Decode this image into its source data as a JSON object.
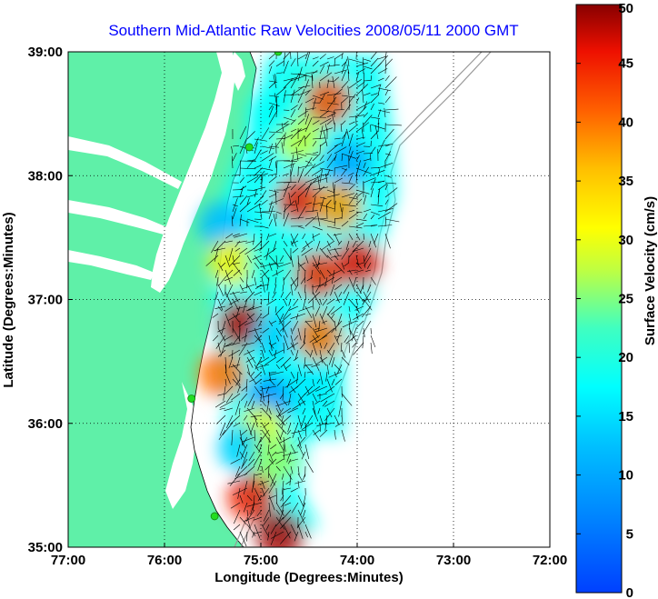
{
  "chart_data": {
    "type": "heatmap",
    "title": "Southern Mid-Atlantic Raw Velocities 2008/05/11 2000 GMT",
    "xlabel": "Longitude (Degrees:Minutes)",
    "ylabel": "Latitude (Degrees:Minutes)",
    "x_ticks": [
      "77:00",
      "76:00",
      "75:00",
      "74:00",
      "73:00",
      "72:00"
    ],
    "x_tick_values": [
      -77,
      -76,
      -75,
      -74,
      -73,
      -72
    ],
    "y_ticks": [
      "39:00",
      "38:00",
      "37:00",
      "36:00",
      "35:00"
    ],
    "y_tick_values": [
      39,
      38,
      37,
      36,
      35
    ],
    "xlim": [
      -77,
      -72
    ],
    "ylim": [
      35,
      39
    ],
    "grid": true,
    "colorbar": {
      "label": "Surface Velocity (cm/s)",
      "range": [
        0,
        50
      ],
      "ticks": [
        "50",
        "45",
        "40",
        "35",
        "30",
        "25",
        "20",
        "15",
        "10",
        "5",
        "0"
      ],
      "tick_values": [
        50,
        45,
        40,
        35,
        30,
        25,
        20,
        15,
        10,
        5,
        0
      ],
      "colormap": "jet"
    },
    "colors": {
      "land": "#5ff0a8",
      "water": "#ffffff",
      "title": "#0000ff",
      "vectors": "#000000",
      "stations": "#22dd22"
    },
    "station_markers": [
      {
        "lon": -74.82,
        "lat": 39.0
      },
      {
        "lon": -75.12,
        "lat": 38.23
      },
      {
        "lon": -75.72,
        "lat": 36.2
      },
      {
        "lon": -75.48,
        "lat": 35.25
      }
    ],
    "velocity_blobs": [
      {
        "lon": -74.5,
        "lat": 38.7,
        "speed": 20
      },
      {
        "lon": -74.3,
        "lat": 38.6,
        "speed": 42
      },
      {
        "lon": -74.6,
        "lat": 38.3,
        "speed": 28
      },
      {
        "lon": -74.9,
        "lat": 38.5,
        "speed": 18
      },
      {
        "lon": -74.1,
        "lat": 38.1,
        "speed": 10
      },
      {
        "lon": -74.6,
        "lat": 37.8,
        "speed": 45
      },
      {
        "lon": -74.2,
        "lat": 37.75,
        "speed": 38
      },
      {
        "lon": -74.0,
        "lat": 37.3,
        "speed": 46
      },
      {
        "lon": -75.4,
        "lat": 37.6,
        "speed": 12
      },
      {
        "lon": -75.3,
        "lat": 37.3,
        "speed": 32
      },
      {
        "lon": -74.9,
        "lat": 37.3,
        "speed": 20
      },
      {
        "lon": -74.4,
        "lat": 37.2,
        "speed": 44
      },
      {
        "lon": -75.2,
        "lat": 36.8,
        "speed": 48
      },
      {
        "lon": -74.85,
        "lat": 36.7,
        "speed": 14
      },
      {
        "lon": -74.4,
        "lat": 36.7,
        "speed": 40
      },
      {
        "lon": -75.4,
        "lat": 36.4,
        "speed": 40
      },
      {
        "lon": -74.9,
        "lat": 36.2,
        "speed": 8
      },
      {
        "lon": -74.5,
        "lat": 36.3,
        "speed": 16
      },
      {
        "lon": -75.0,
        "lat": 35.95,
        "speed": 30
      },
      {
        "lon": -75.2,
        "lat": 35.8,
        "speed": 14
      },
      {
        "lon": -74.85,
        "lat": 35.7,
        "speed": 26
      },
      {
        "lon": -75.1,
        "lat": 35.4,
        "speed": 45
      },
      {
        "lon": -74.8,
        "lat": 35.1,
        "speed": 49
      }
    ]
  }
}
